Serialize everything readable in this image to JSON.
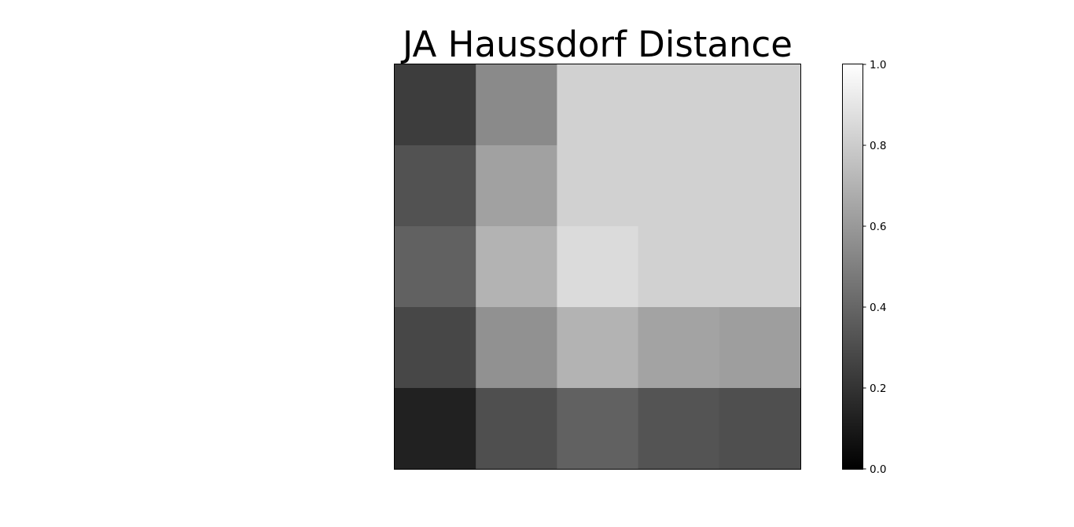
{
  "chart_data": {
    "type": "heatmap",
    "title": "JA Haussdorf Distance",
    "xlabel": "",
    "ylabel": "",
    "colormap": "gray",
    "value_range": [
      0.0,
      1.0
    ],
    "grid": false,
    "rows": 5,
    "cols": 5,
    "values": [
      [
        0.24,
        0.54,
        0.82,
        0.82,
        0.82
      ],
      [
        0.32,
        0.63,
        0.82,
        0.82,
        0.82
      ],
      [
        0.38,
        0.7,
        0.86,
        0.82,
        0.82
      ],
      [
        0.28,
        0.57,
        0.7,
        0.64,
        0.62
      ],
      [
        0.13,
        0.31,
        0.38,
        0.33,
        0.31
      ]
    ],
    "colorbar": {
      "ticks": [
        0.0,
        0.2,
        0.4,
        0.6,
        0.8,
        1.0
      ],
      "tick_labels": [
        "0.0",
        "0.2",
        "0.4",
        "0.6",
        "0.8",
        "1.0"
      ]
    }
  }
}
